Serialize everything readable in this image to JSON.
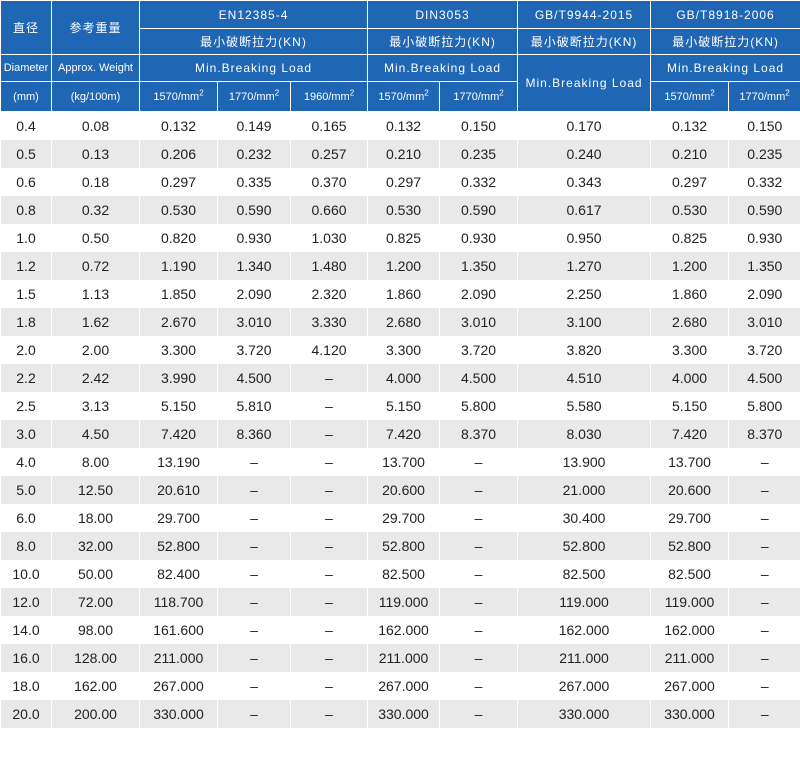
{
  "header": {
    "diameter_cn": "直径",
    "weight_cn": "参考重量",
    "diameter_en": "Diameter",
    "weight_en": "Approx. Weight",
    "diameter_unit": "(mm)",
    "weight_unit": "(kg/100m)",
    "standards": [
      {
        "name": "EN12385-4",
        "load_cn": "最小破断拉力(KN)",
        "load_en": "Min.Breaking Load"
      },
      {
        "name": "DIN3053",
        "load_cn": "最小破断拉力(KN)",
        "load_en": "Min.Breaking Load"
      },
      {
        "name": "GB/T9944-2015",
        "load_cn": "最小破断拉力(KN)",
        "load_en": "Min.Breaking Load"
      },
      {
        "name": "GB/T8918-2006",
        "load_cn": "最小破断拉力(KN)",
        "load_en": "Min.Breaking Load"
      }
    ],
    "grades": {
      "g1570": "1570/mm",
      "g1770": "1770/mm",
      "g1960": "1960/mm",
      "sup": "2"
    }
  },
  "rows": [
    [
      "0.4",
      "0.08",
      "0.132",
      "0.149",
      "0.165",
      "0.132",
      "0.150",
      "0.170",
      "0.132",
      "0.150"
    ],
    [
      "0.5",
      "0.13",
      "0.206",
      "0.232",
      "0.257",
      "0.210",
      "0.235",
      "0.240",
      "0.210",
      "0.235"
    ],
    [
      "0.6",
      "0.18",
      "0.297",
      "0.335",
      "0.370",
      "0.297",
      "0.332",
      "0.343",
      "0.297",
      "0.332"
    ],
    [
      "0.8",
      "0.32",
      "0.530",
      "0.590",
      "0.660",
      "0.530",
      "0.590",
      "0.617",
      "0.530",
      "0.590"
    ],
    [
      "1.0",
      "0.50",
      "0.820",
      "0.930",
      "1.030",
      "0.825",
      "0.930",
      "0.950",
      "0.825",
      "0.930"
    ],
    [
      "1.2",
      "0.72",
      "1.190",
      "1.340",
      "1.480",
      "1.200",
      "1.350",
      "1.270",
      "1.200",
      "1.350"
    ],
    [
      "1.5",
      "1.13",
      "1.850",
      "2.090",
      "2.320",
      "1.860",
      "2.090",
      "2.250",
      "1.860",
      "2.090"
    ],
    [
      "1.8",
      "1.62",
      "2.670",
      "3.010",
      "3.330",
      "2.680",
      "3.010",
      "3.100",
      "2.680",
      "3.010"
    ],
    [
      "2.0",
      "2.00",
      "3.300",
      "3.720",
      "4.120",
      "3.300",
      "3.720",
      "3.820",
      "3.300",
      "3.720"
    ],
    [
      "2.2",
      "2.42",
      "3.990",
      "4.500",
      "–",
      "4.000",
      "4.500",
      "4.510",
      "4.000",
      "4.500"
    ],
    [
      "2.5",
      "3.13",
      "5.150",
      "5.810",
      "–",
      "5.150",
      "5.800",
      "5.580",
      "5.150",
      "5.800"
    ],
    [
      "3.0",
      "4.50",
      "7.420",
      "8.360",
      "–",
      "7.420",
      "8.370",
      "8.030",
      "7.420",
      "8.370"
    ],
    [
      "4.0",
      "8.00",
      "13.190",
      "–",
      "–",
      "13.700",
      "–",
      "13.900",
      "13.700",
      "–"
    ],
    [
      "5.0",
      "12.50",
      "20.610",
      "–",
      "–",
      "20.600",
      "–",
      "21.000",
      "20.600",
      "–"
    ],
    [
      "6.0",
      "18.00",
      "29.700",
      "–",
      "–",
      "29.700",
      "–",
      "30.400",
      "29.700",
      "–"
    ],
    [
      "8.0",
      "32.00",
      "52.800",
      "–",
      "–",
      "52.800",
      "–",
      "52.800",
      "52.800",
      "–"
    ],
    [
      "10.0",
      "50.00",
      "82.400",
      "–",
      "–",
      "82.500",
      "–",
      "82.500",
      "82.500",
      "–"
    ],
    [
      "12.0",
      "72.00",
      "118.700",
      "–",
      "–",
      "119.000",
      "–",
      "119.000",
      "119.000",
      "–"
    ],
    [
      "14.0",
      "98.00",
      "161.600",
      "–",
      "–",
      "162.000",
      "–",
      "162.000",
      "162.000",
      "–"
    ],
    [
      "16.0",
      "128.00",
      "211.000",
      "–",
      "–",
      "211.000",
      "–",
      "211.000",
      "211.000",
      "–"
    ],
    [
      "18.0",
      "162.00",
      "267.000",
      "–",
      "–",
      "267.000",
      "–",
      "267.000",
      "267.000",
      "–"
    ],
    [
      "20.0",
      "200.00",
      "330.000",
      "–",
      "–",
      "330.000",
      "–",
      "330.000",
      "330.000",
      "–"
    ]
  ]
}
